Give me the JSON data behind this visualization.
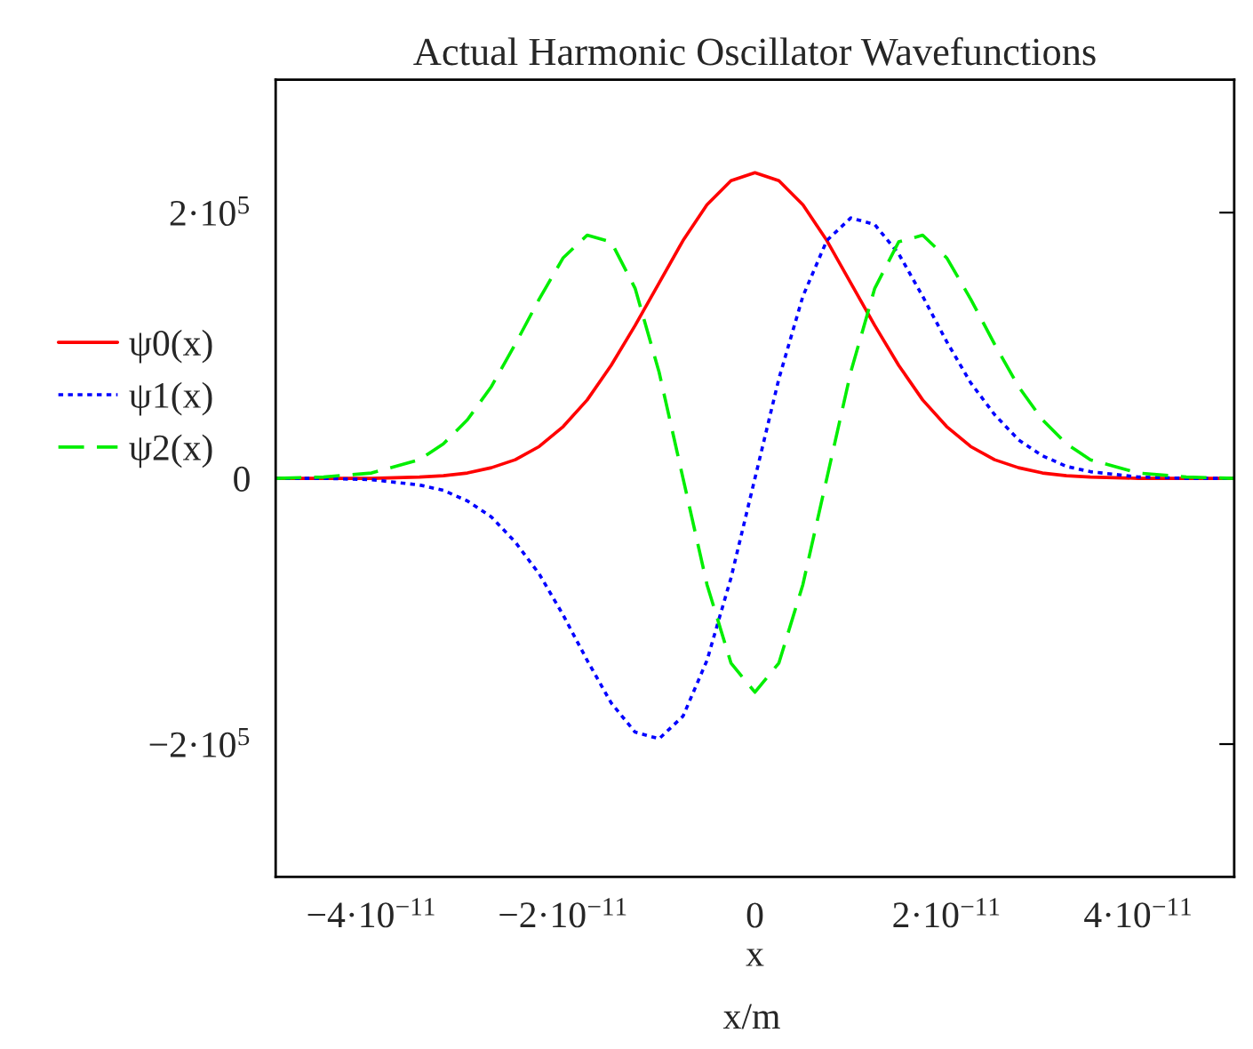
{
  "chart_data": {
    "type": "line",
    "title": "Actual Harmonic Oscillator Wavefunctions",
    "xlabel": "x",
    "annotations": [
      "x/m"
    ],
    "x": [
      -5e-11,
      -4.5e-11,
      -4e-11,
      -3.5e-11,
      -3.25e-11,
      -3e-11,
      -2.75e-11,
      -2.5e-11,
      -2.25e-11,
      -2e-11,
      -1.75e-11,
      -1.5e-11,
      -1.25e-11,
      -1e-11,
      -7.5e-12,
      -5e-12,
      -2.5e-12,
      0,
      2.5e-12,
      5e-12,
      7.5e-12,
      1e-11,
      1.25e-11,
      1.5e-11,
      1.75e-11,
      2e-11,
      2.25e-11,
      2.5e-11,
      2.75e-11,
      3e-11,
      3.25e-11,
      3.5e-11,
      4e-11,
      4.5e-11,
      5e-11
    ],
    "series": [
      {
        "name": "ψ0(x)",
        "color": "#ff0000",
        "line_style": "solid",
        "values": [
          0,
          0,
          0,
          1000,
          2000,
          4000,
          8000,
          14000,
          24000,
          39000,
          59000,
          85000,
          115000,
          147000,
          179000,
          206000,
          224000,
          230000,
          224000,
          206000,
          179000,
          147000,
          115000,
          85000,
          59000,
          39000,
          24000,
          14000,
          8000,
          4000,
          2000,
          1000,
          0,
          0,
          0
        ]
      },
      {
        "name": "ψ1(x)",
        "color": "#0000ff",
        "line_style": "dotted",
        "values": [
          0,
          0,
          -1000,
          -5000,
          -9000,
          -17000,
          -29000,
          -48000,
          -72000,
          -103000,
          -137000,
          -169000,
          -191000,
          -196000,
          -179000,
          -137000,
          -75000,
          0,
          75000,
          137000,
          179000,
          196000,
          191000,
          169000,
          137000,
          103000,
          72000,
          48000,
          29000,
          17000,
          9000,
          5000,
          1000,
          0,
          0
        ]
      },
      {
        "name": "ψ2(x)",
        "color": "#00ee00",
        "line_style": "dashed",
        "values": [
          0,
          1000,
          4000,
          14000,
          26000,
          44000,
          69000,
          101000,
          135000,
          166000,
          183000,
          178000,
          143000,
          80000,
          0,
          -80000,
          -139000,
          -161000,
          -139000,
          -80000,
          0,
          80000,
          143000,
          178000,
          183000,
          166000,
          135000,
          101000,
          69000,
          44000,
          26000,
          14000,
          4000,
          1000,
          0
        ]
      }
    ],
    "xlim": [
      -5e-11,
      5e-11
    ],
    "ylim": [
      -300000,
      300000
    ],
    "xticks": [
      {
        "value": -4e-11,
        "label": "−4·10$^{−11}$"
      },
      {
        "value": -2e-11,
        "label": "−2·10$^{−11}$"
      },
      {
        "value": 0,
        "label": "0"
      },
      {
        "value": 2e-11,
        "label": "2·10$^{−11}$"
      },
      {
        "value": 4e-11,
        "label": "4·10$^{−11}$"
      }
    ],
    "yticks": [
      {
        "value": -200000,
        "label": "−2·10$^{5}$"
      },
      {
        "value": 0,
        "label": "0"
      },
      {
        "value": 200000,
        "label": "2·10$^{5}$"
      }
    ],
    "legend": "left",
    "grid": false
  }
}
